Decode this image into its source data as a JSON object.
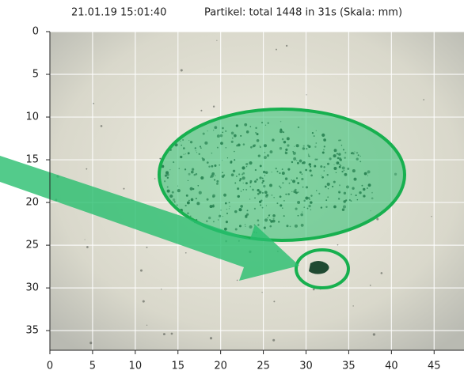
{
  "chart_data": {
    "type": "image",
    "title": "21.01.19 15:01:40",
    "subtitle": "Partikel: total 1448 in 31s (Skala: mm)",
    "xlim": [
      0,
      48.5
    ],
    "ylim": [
      37.3,
      0
    ],
    "xticks": [
      0,
      5,
      10,
      15,
      20,
      25,
      30,
      35,
      40,
      45
    ],
    "yticks": [
      0,
      5,
      10,
      15,
      20,
      25,
      30,
      35
    ],
    "grid": true
  }
}
